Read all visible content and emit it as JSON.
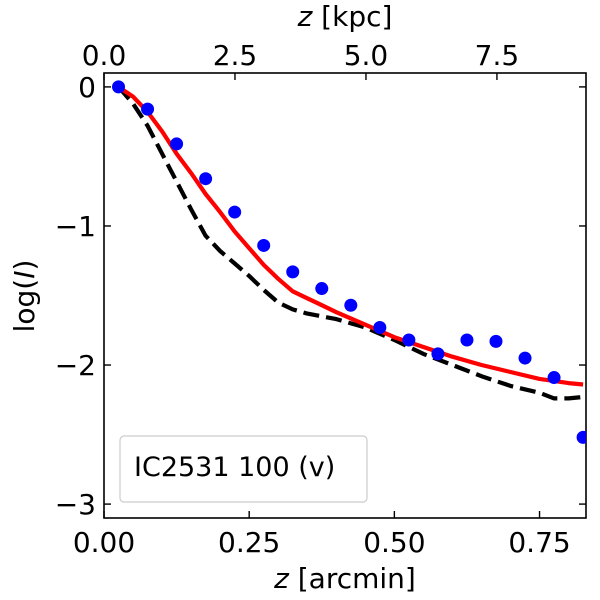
{
  "chart_data": {
    "type": "scatter",
    "title": "",
    "xlabel_prefix": "z",
    "xlabel_suffix": " [arcmin]",
    "top_xlabel_prefix": "z",
    "top_xlabel_suffix": " [kpc]",
    "ylabel_prefix": "log(",
    "ylabel_var": "I",
    "ylabel_suffix": ")",
    "xlim": [
      0.0,
      0.83
    ],
    "ylim": [
      -3.1,
      0.1
    ],
    "top_xlim": [
      0.0,
      9.2
    ],
    "x_ticks": [
      0.0,
      0.25,
      0.5,
      0.75
    ],
    "x_tick_labels": [
      "0.00",
      "0.25",
      "0.50",
      "0.75"
    ],
    "top_x_ticks": [
      0.0,
      2.5,
      5.0,
      7.5
    ],
    "top_x_tick_labels": [
      "0.0",
      "2.5",
      "5.0",
      "7.5"
    ],
    "y_ticks": [
      0,
      -1,
      -2,
      -3
    ],
    "y_tick_labels": [
      "0",
      "−1",
      "−2",
      "−3"
    ],
    "legend_text": "IC2531 100 (v)",
    "legend_placement": "lower-left",
    "grid": false,
    "colors": {
      "points": "#0000ff",
      "model": "#ff0000",
      "dashed": "#000000"
    },
    "series": [
      {
        "name": "data",
        "kind": "scatter",
        "x": [
          0.025,
          0.075,
          0.125,
          0.175,
          0.225,
          0.275,
          0.325,
          0.375,
          0.425,
          0.475,
          0.525,
          0.575,
          0.625,
          0.675,
          0.725,
          0.775,
          0.825
        ],
        "y": [
          0.0,
          -0.16,
          -0.41,
          -0.66,
          -0.9,
          -1.14,
          -1.33,
          -1.45,
          -1.57,
          -1.73,
          -1.82,
          -1.92,
          -1.82,
          -1.83,
          -1.95,
          -2.09,
          -2.52
        ]
      },
      {
        "name": "model",
        "kind": "line",
        "x": [
          0.025,
          0.05,
          0.075,
          0.1,
          0.125,
          0.15,
          0.175,
          0.2,
          0.225,
          0.25,
          0.275,
          0.3,
          0.325,
          0.35,
          0.375,
          0.4,
          0.45,
          0.5,
          0.55,
          0.6,
          0.65,
          0.7,
          0.75,
          0.8,
          0.825
        ],
        "y": [
          0.0,
          -0.07,
          -0.18,
          -0.32,
          -0.48,
          -0.62,
          -0.77,
          -0.9,
          -1.04,
          -1.16,
          -1.28,
          -1.38,
          -1.47,
          -1.52,
          -1.57,
          -1.62,
          -1.71,
          -1.8,
          -1.87,
          -1.94,
          -2.0,
          -2.05,
          -2.1,
          -2.13,
          -2.14
        ]
      },
      {
        "name": "dashed-model",
        "kind": "dashed-line",
        "x": [
          0.025,
          0.05,
          0.075,
          0.1,
          0.125,
          0.15,
          0.175,
          0.2,
          0.225,
          0.25,
          0.275,
          0.3,
          0.325,
          0.35,
          0.4,
          0.45,
          0.5,
          0.55,
          0.6,
          0.65,
          0.7,
          0.75,
          0.775,
          0.8,
          0.825
        ],
        "y": [
          0.0,
          -0.12,
          -0.28,
          -0.48,
          -0.68,
          -0.88,
          -1.07,
          -1.18,
          -1.27,
          -1.36,
          -1.46,
          -1.55,
          -1.6,
          -1.63,
          -1.67,
          -1.73,
          -1.82,
          -1.92,
          -2.0,
          -2.08,
          -2.15,
          -2.2,
          -2.24,
          -2.24,
          -2.23
        ]
      }
    ]
  }
}
